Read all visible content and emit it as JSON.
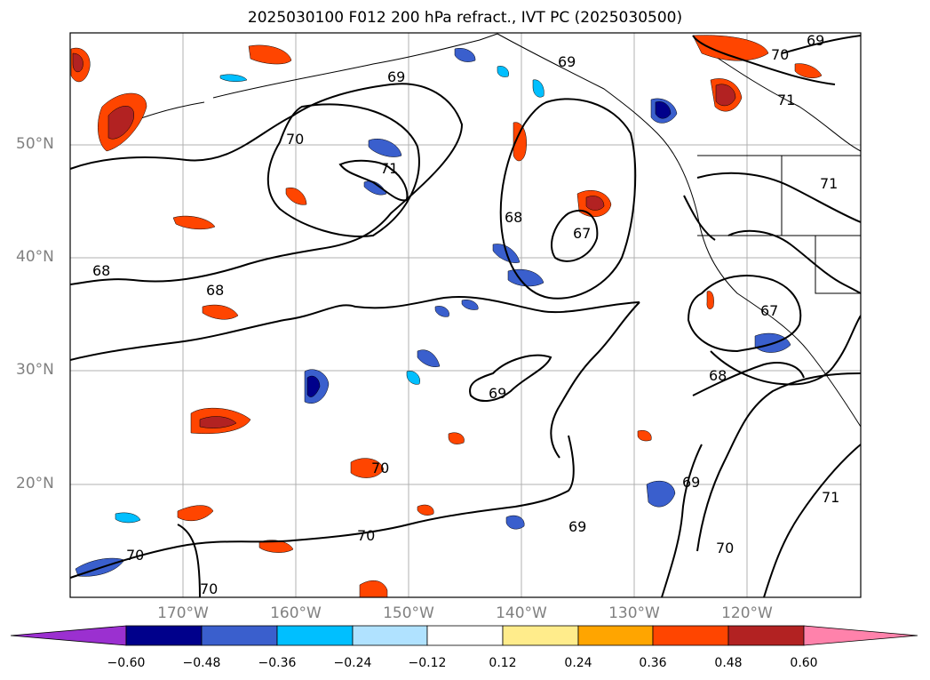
{
  "title": "2025030100 F012 200 hPa refract., IVT PC (2025030500)",
  "lat_labels": [
    "50°N",
    "40°N",
    "30°N",
    "20°N"
  ],
  "lon_labels": [
    "170°W",
    "160°W",
    "150°W",
    "140°W",
    "130°W",
    "120°W"
  ],
  "contour_labels": [
    "69",
    "70",
    "71",
    "70",
    "69",
    "68",
    "67",
    "68",
    "68",
    "67",
    "68",
    "69",
    "70",
    "69",
    "70",
    "70",
    "69",
    "70",
    "71",
    "71",
    "70",
    "71",
    "69"
  ],
  "colorbar": {
    "ticks": [
      "−0.60",
      "−0.48",
      "−0.36",
      "−0.24",
      "−0.12",
      "0.12",
      "0.24",
      "0.36",
      "0.48",
      "0.60"
    ],
    "colors": [
      "#9b30d0",
      "#00008b",
      "#3a5fcd",
      "#00bfff",
      "#b0e2ff",
      "#ffffff",
      "#ffec8b",
      "#ffa500",
      "#ff4500",
      "#b22222",
      "#ff82ab"
    ]
  }
}
